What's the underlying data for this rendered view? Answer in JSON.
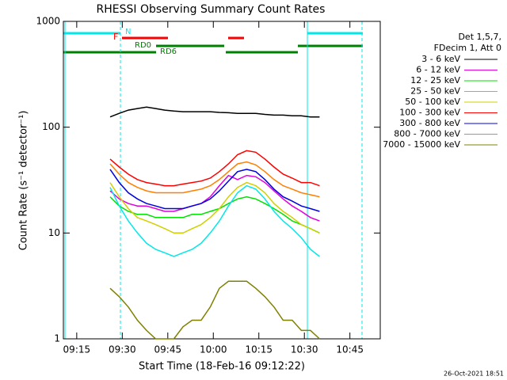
{
  "chart_data": {
    "type": "line",
    "title": "RHESSI Observing Summary Count Rates",
    "x_label": "Start Time (18-Feb-16 09:12:22)",
    "y_label": "Count Rate (s⁻¹ detector⁻¹)",
    "legend_header": [
      "Det 1,5,7,",
      "FDecim 1, Att 0"
    ],
    "footer": "26-Oct-2021 18:51",
    "annotations": [
      "N",
      "F",
      "RD0",
      "RD6"
    ],
    "log_y": true,
    "xlim": [
      550.6,
      655
    ],
    "ylim": [
      1,
      1000
    ],
    "xticks": [
      {
        "value": 555,
        "label": "09:15"
      },
      {
        "value": 570,
        "label": "09:30"
      },
      {
        "value": 585,
        "label": "09:45"
      },
      {
        "value": 600,
        "label": "10:00"
      },
      {
        "value": 615,
        "label": "10:15"
      },
      {
        "value": 630,
        "label": "10:30"
      },
      {
        "value": 645,
        "label": "10:45"
      }
    ],
    "yticks": [
      1,
      10,
      100,
      1000
    ],
    "x": [
      566,
      569,
      572,
      575,
      578,
      581,
      584,
      587,
      590,
      593,
      596,
      599,
      602,
      605,
      608,
      611,
      614,
      617,
      620,
      623,
      626,
      629,
      632,
      635
    ],
    "series": [
      {
        "name": "3 - 6 keV",
        "color": "#000000",
        "values": [
          125,
          135,
          145,
          150,
          155,
          150,
          145,
          142,
          140,
          140,
          140,
          140,
          138,
          137,
          135,
          135,
          135,
          132,
          130,
          130,
          128,
          128,
          125,
          125
        ]
      },
      {
        "name": "6 - 12 keV",
        "color": "#e000e0",
        "values": [
          25,
          21,
          19,
          18,
          18,
          17,
          16,
          16,
          17,
          18,
          19,
          22,
          28,
          35,
          32,
          35,
          34,
          30,
          25,
          21,
          18,
          16,
          14,
          13
        ]
      },
      {
        "name": "12 - 25 keV",
        "color": "#00e000",
        "values": [
          22,
          18,
          16,
          15,
          15,
          14,
          14,
          14,
          14,
          15,
          15,
          16,
          17,
          19,
          21,
          22,
          21,
          19,
          17,
          15,
          13,
          12,
          11,
          10
        ]
      },
      {
        "name": "25 - 50 keV",
        "color": "#00e8e8",
        "values": [
          27,
          18,
          13,
          10,
          8,
          7,
          6.5,
          6,
          6.5,
          7,
          8,
          10,
          13,
          18,
          24,
          28,
          26,
          21,
          16,
          13,
          11,
          9,
          7,
          6
        ]
      },
      {
        "name": "50 - 100 keV",
        "color": "#d0d000",
        "values": [
          30,
          22,
          17,
          14,
          13,
          12,
          11,
          10,
          10,
          11,
          12,
          14,
          17,
          22,
          27,
          30,
          28,
          24,
          19,
          16,
          14,
          12,
          11,
          10
        ]
      },
      {
        "name": "100 - 300 keV",
        "color": "#ff0000",
        "values": [
          50,
          42,
          36,
          32,
          30,
          29,
          28,
          28,
          29,
          30,
          31,
          33,
          38,
          45,
          55,
          60,
          58,
          50,
          42,
          36,
          33,
          30,
          30,
          28
        ]
      },
      {
        "name": "300 - 800 keV",
        "color": "#0000e0",
        "values": [
          40,
          30,
          24,
          21,
          19,
          18,
          17,
          17,
          17,
          18,
          19,
          21,
          25,
          31,
          38,
          40,
          38,
          32,
          26,
          22,
          20,
          18,
          17,
          16
        ]
      },
      {
        "name": "800 - 7000 keV",
        "color": "#ff8000",
        "values": [
          45,
          36,
          30,
          27,
          25,
          24,
          24,
          24,
          24,
          25,
          26,
          28,
          32,
          38,
          45,
          47,
          44,
          38,
          32,
          28,
          26,
          24,
          23,
          22
        ]
      },
      {
        "name": "7000 - 15000 keV",
        "color": "#808000",
        "values": [
          3,
          2.5,
          2,
          1.5,
          1.2,
          1,
          1,
          1,
          1.3,
          1.5,
          1.5,
          2,
          3,
          3.5,
          3.5,
          3.5,
          3,
          2.5,
          2,
          1.5,
          1.5,
          1.2,
          1.2,
          1
        ]
      }
    ]
  }
}
